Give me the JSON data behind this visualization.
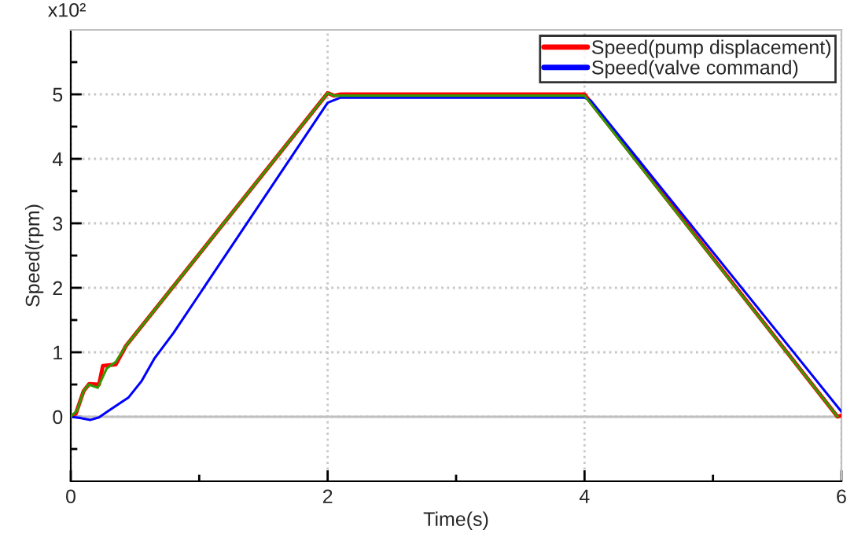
{
  "chart_data": {
    "type": "line",
    "xlabel": "Time(s)",
    "ylabel": "Speed(rpm)",
    "annotations": [
      "x10²"
    ],
    "xlim": [
      0,
      6
    ],
    "ylim": [
      -1,
      6
    ],
    "xticks": [
      0,
      {
        "value": 1,
        "label": null
      },
      2,
      {
        "value": 3,
        "label": null
      },
      4,
      {
        "value": 5,
        "label": null
      },
      6
    ],
    "yticks": [
      {
        "value": -0.5,
        "label": null
      },
      0,
      {
        "value": 0.5,
        "label": null
      },
      1,
      {
        "value": 1.5,
        "label": null
      },
      2,
      {
        "value": 2.5,
        "label": null
      },
      3,
      {
        "value": 3.5,
        "label": null
      },
      4,
      {
        "value": 4.5,
        "label": null
      },
      5,
      {
        "value": 5.5,
        "label": null
      }
    ],
    "grid": true,
    "legend": "top right",
    "line_style": "solid",
    "marker": "none",
    "ref_lines": [
      {
        "axis": "y",
        "value": 0,
        "color": "#c0c0c0",
        "line_style": "solid"
      }
    ],
    "series": [
      {
        "name": "Speed(pump displacement)",
        "color": "#ff0000",
        "x": [
          0,
          0.04,
          0.1,
          0.144,
          0.22,
          0.25,
          0.35,
          0.43,
          2.0,
          2.05,
          2.1,
          4.0,
          5.97,
          6.0
        ],
        "values": [
          0,
          0.05,
          0.4,
          0.51,
          0.5,
          0.79,
          0.81,
          1.1,
          5.02,
          4.98,
          5.0,
          5.0,
          0,
          0.02
        ]
      },
      {
        "name": "Speed(valve command)",
        "color": "#0000ff",
        "x": [
          0,
          0.08,
          0.15,
          0.22,
          0.3,
          0.45,
          0.55,
          0.65,
          0.8,
          2.0,
          2.1,
          4.0,
          4.05,
          6.0
        ],
        "values": [
          0,
          -0.02,
          -0.05,
          -0.01,
          0.1,
          0.3,
          0.55,
          0.9,
          1.3,
          4.87,
          4.95,
          4.95,
          4.9,
          0.08
        ]
      },
      {
        "color": "#339900",
        "x": [
          0,
          0.05,
          0.1,
          0.14,
          0.21,
          0.28,
          0.35,
          0.43,
          2.0,
          2.05,
          2.4,
          4.0,
          5.97
        ],
        "values": [
          0,
          0.1,
          0.4,
          0.5,
          0.45,
          0.75,
          0.85,
          1.1,
          5.02,
          4.98,
          4.98,
          4.98,
          0
        ]
      }
    ]
  }
}
